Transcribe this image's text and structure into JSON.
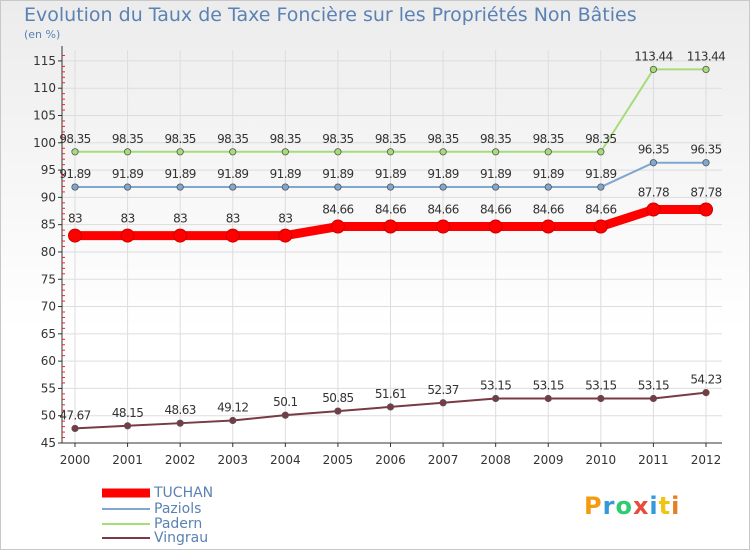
{
  "chart_data": {
    "type": "line",
    "title": "Evolution du Taux de Taxe Foncière sur les Propriétés Non Bâties",
    "subtitle": "(en %)",
    "x": [
      "2000",
      "2001",
      "2002",
      "2003",
      "2004",
      "2005",
      "2006",
      "2007",
      "2008",
      "2009",
      "2010",
      "2011",
      "2012"
    ],
    "ylim": [
      45,
      117
    ],
    "yticks": [
      45,
      50,
      55,
      60,
      65,
      70,
      75,
      80,
      85,
      90,
      95,
      100,
      105,
      110,
      115
    ],
    "grid": true,
    "legend": "bottom-left",
    "series": [
      {
        "name": "TUCHAN",
        "color": "#ff0000",
        "width": 9,
        "values": [
          83,
          83,
          83,
          83,
          83,
          84.66,
          84.66,
          84.66,
          84.66,
          84.66,
          84.66,
          87.78,
          87.78
        ],
        "labels": [
          "83",
          "83",
          "83",
          "83",
          "83",
          "84.66",
          "84.66",
          "84.66",
          "84.66",
          "84.66",
          "84.66",
          "87.78",
          "87.78"
        ]
      },
      {
        "name": "Paziols",
        "color": "#7fa7d0",
        "width": 2,
        "values": [
          91.89,
          91.89,
          91.89,
          91.89,
          91.89,
          91.89,
          91.89,
          91.89,
          91.89,
          91.89,
          91.89,
          96.35,
          96.35
        ],
        "labels": [
          "91.89",
          "91.89",
          "91.89",
          "91.89",
          "91.89",
          "91.89",
          "91.89",
          "91.89",
          "91.89",
          "91.89",
          "91.89",
          "96.35",
          "96.35"
        ]
      },
      {
        "name": "Padern",
        "color": "#a6dc7a",
        "width": 2,
        "values": [
          98.35,
          98.35,
          98.35,
          98.35,
          98.35,
          98.35,
          98.35,
          98.35,
          98.35,
          98.35,
          98.35,
          113.44,
          113.44
        ],
        "labels": [
          "98.35",
          "98.35",
          "98.35",
          "98.35",
          "98.35",
          "98.35",
          "98.35",
          "98.35",
          "98.35",
          "98.35",
          "98.35",
          "113.44",
          "113.44"
        ]
      },
      {
        "name": "Vingrau",
        "color": "#7a3a44",
        "width": 2,
        "values": [
          47.67,
          48.15,
          48.63,
          49.12,
          50.1,
          50.85,
          51.61,
          52.37,
          53.15,
          53.15,
          53.15,
          53.15,
          54.23
        ],
        "labels": [
          "47.67",
          "48.15",
          "48.63",
          "49.12",
          "50.1",
          "50.85",
          "51.61",
          "52.37",
          "53.15",
          "53.15",
          "53.15",
          "53.15",
          "54.23"
        ]
      }
    ]
  },
  "logo": {
    "text": "Proxiti",
    "letters": [
      "P",
      "r",
      "o",
      "x",
      "i",
      "t",
      "i"
    ],
    "colors": [
      "#f39c12",
      "#3498db",
      "#2ecc71",
      "#e74c3c",
      "#3498db",
      "#f1c40f",
      "#e67e22"
    ]
  }
}
